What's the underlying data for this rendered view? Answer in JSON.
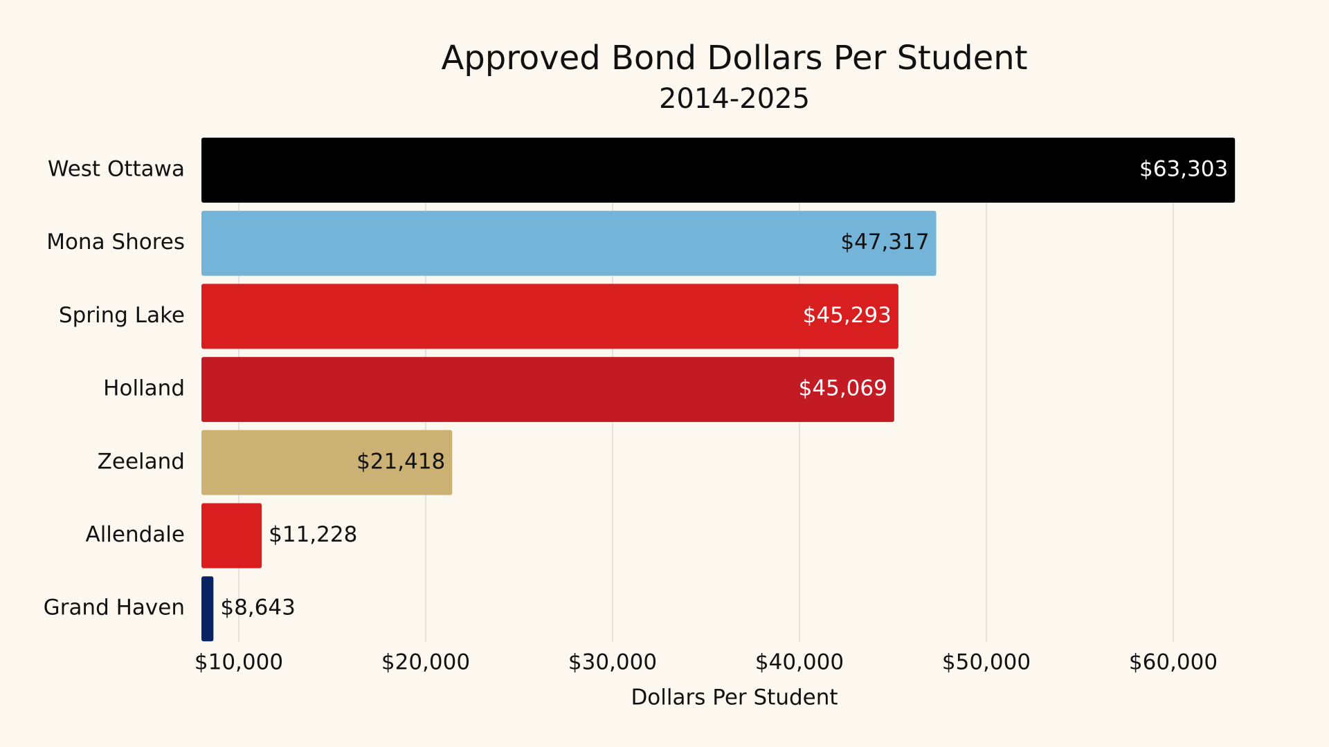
{
  "chart_data": {
    "type": "hbar",
    "title": "Approved Bond Dollars Per Student",
    "subtitle": "2014-2025",
    "x_label": "Dollars Per Student",
    "categories": [
      "West Ottawa",
      "Mona Shores",
      "Spring Lake",
      "Holland",
      "Zeeland",
      "Allendale",
      "Grand Haven"
    ],
    "values": [
      63303,
      47317,
      45293,
      45069,
      21418,
      11228,
      8643
    ],
    "value_labels": [
      "$63,303",
      "$47,317",
      "$45,293",
      "$45,069",
      "$21,418",
      "$11,228",
      "$8,643"
    ],
    "colors": [
      "#000000",
      "#74b4d8",
      "#d91e20",
      "#c21b24",
      "#cbb274",
      "#d91e20",
      "#0a2463"
    ],
    "xlim": [
      8000,
      66000
    ],
    "xticks": [
      {
        "value": 10000,
        "label": "$10,000"
      },
      {
        "value": 20000,
        "label": "$20,000"
      },
      {
        "value": 30000,
        "label": "$30,000"
      },
      {
        "value": 40000,
        "label": "$40,000"
      },
      {
        "value": 50000,
        "label": "$50,000"
      },
      {
        "value": 60000,
        "label": "$60,000"
      }
    ],
    "grid": true
  }
}
